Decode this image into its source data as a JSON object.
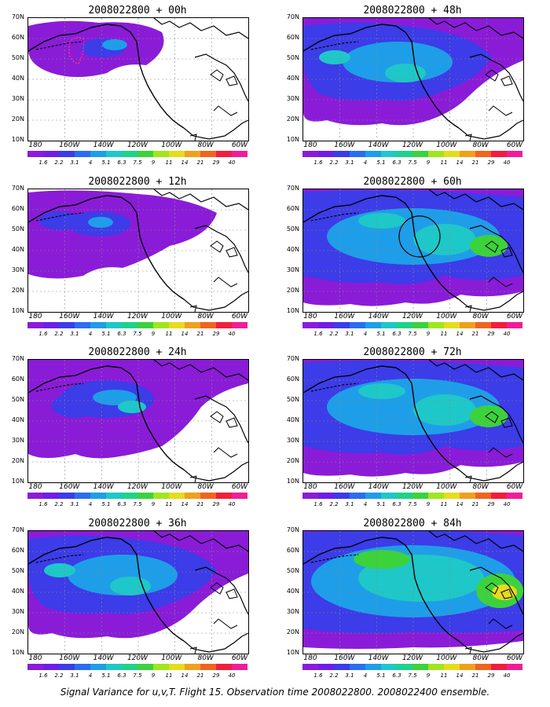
{
  "panels": [
    {
      "title": "2008022800 + 00h",
      "level": 0
    },
    {
      "title": "2008022800 + 12h",
      "level": 1
    },
    {
      "title": "2008022800 + 24h",
      "level": 2
    },
    {
      "title": "2008022800 + 36h",
      "level": 3
    },
    {
      "title": "2008022800 + 48h",
      "level": 3
    },
    {
      "title": "2008022800 + 60h",
      "level": 4
    },
    {
      "title": "2008022800 + 72h",
      "level": 4
    },
    {
      "title": "2008022800 + 84h",
      "level": 5
    }
  ],
  "lat_labels": [
    "70N",
    "60N",
    "50N",
    "40N",
    "30N",
    "20N",
    "10N"
  ],
  "lon_labels": [
    "180",
    "160W",
    "140W",
    "120W",
    "100W",
    "80W",
    "60W"
  ],
  "colorbar": {
    "labels": [
      "1.6",
      "2.2",
      "3.1",
      "4",
      "5.1",
      "6.3",
      "7.5",
      "9",
      "11",
      "14",
      "21",
      "29",
      "40"
    ],
    "colors": [
      "#8a1cd8",
      "#6e1ee8",
      "#3c3ce8",
      "#2a6ef0",
      "#1e9ee8",
      "#1ec8c8",
      "#1ed28a",
      "#3cd23c",
      "#a0e61e",
      "#e6dc1e",
      "#f0a01e",
      "#f0641e",
      "#f01e3c",
      "#f01e96"
    ]
  },
  "footer": "Signal Variance for u,v,T. Flight 15. Observation time 2008022800. 2008022400 ensemble."
}
